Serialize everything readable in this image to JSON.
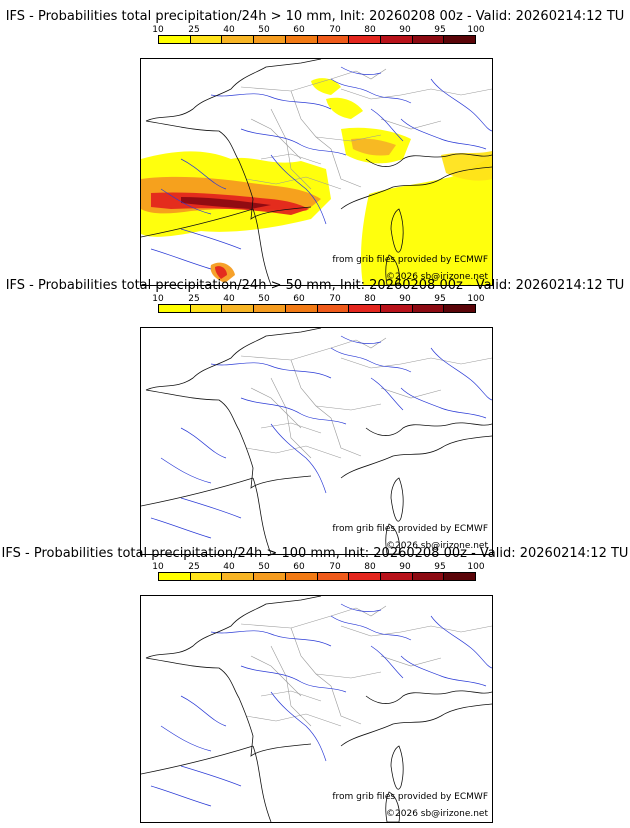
{
  "colorbar": {
    "ticks": [
      "10",
      "25",
      "40",
      "50",
      "60",
      "70",
      "80",
      "90",
      "95",
      "100"
    ],
    "colors": [
      "#ffff00",
      "#ffe31a",
      "#f7b525",
      "#f59c1f",
      "#f27a14",
      "#ef5a1a",
      "#e3261e",
      "#b8121a",
      "#8c0a12",
      "#5a0408"
    ]
  },
  "panels": [
    {
      "title": "IFS - Probabilities total precipitation/24h > 10 mm, Init: 20260208 00z - Valid: 20260214:12 TU",
      "source_credit": "from grib files provided by ECMWF",
      "copyright": "©2026 sb@irizone.net",
      "precip_overlay": true
    },
    {
      "title": "IFS - Probabilities total precipitation/24h > 50 mm, Init: 20260208 00z - Valid: 20260214:12 TU",
      "source_credit": "from grib files provided by ECMWF",
      "copyright": "©2026 sb@irizone.net",
      "precip_overlay": false
    },
    {
      "title": "IFS - Probabilities total precipitation/24h > 100 mm, Init: 20260208 00z - Valid: 20260214:12 TU",
      "source_credit": "from grib files provided by ECMWF",
      "copyright": "©2026 sb@irizone.net",
      "precip_overlay": false
    }
  ]
}
